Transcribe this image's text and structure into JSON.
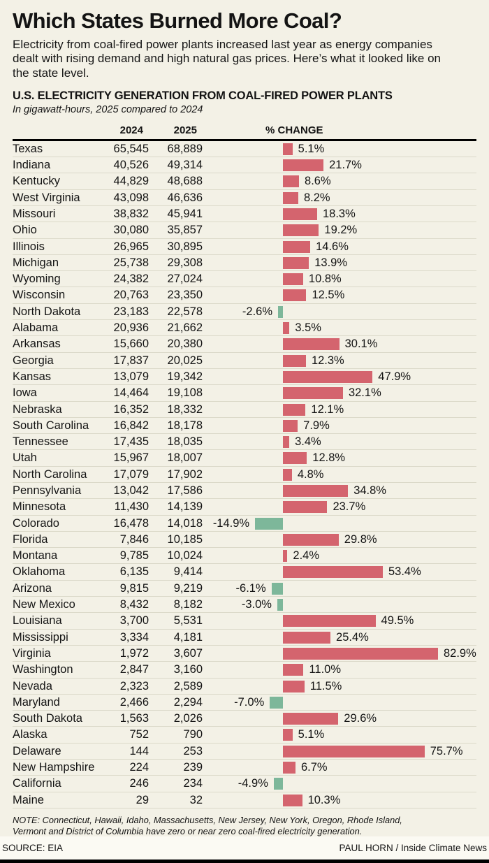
{
  "header": {
    "title": "Which States Burned More Coal?",
    "intro": "Electricity from coal-fired power plants increased last year as energy companies dealt with rising demand and high natural gas prices. Here’s what it looked like on the state level."
  },
  "chart": {
    "heading": "U.S. ELECTRICITY GENERATION FROM COAL-FIRED POWER PLANTS",
    "subheading": "In gigawatt-hours, 2025 compared to 2024",
    "columns": {
      "year_2024": "2024",
      "year_2025": "2025",
      "change": "% CHANGE"
    }
  },
  "chart_data": {
    "type": "bar",
    "orientation": "horizontal",
    "title": "U.S. ELECTRICITY GENERATION FROM COAL-FIRED POWER PLANTS",
    "subtitle": "In gigawatt-hours, 2025 compared to 2024",
    "unit": "gigawatt-hours",
    "bar_variable": "% CHANGE",
    "xlim": [
      -15,
      90
    ],
    "legend": false,
    "grid": "row-separators",
    "categories": [
      "Texas",
      "Indiana",
      "Kentucky",
      "West Virginia",
      "Missouri",
      "Ohio",
      "Illinois",
      "Michigan",
      "Wyoming",
      "Wisconsin",
      "North Dakota",
      "Alabama",
      "Arkansas",
      "Georgia",
      "Kansas",
      "Iowa",
      "Nebraska",
      "South Carolina",
      "Tennessee",
      "Utah",
      "North Carolina",
      "Pennsylvania",
      "Minnesota",
      "Colorado",
      "Florida",
      "Montana",
      "Oklahoma",
      "Arizona",
      "New Mexico",
      "Louisiana",
      "Mississippi",
      "Virginia",
      "Washington",
      "Nevada",
      "Maryland",
      "South Dakota",
      "Alaska",
      "Delaware",
      "New Hampshire",
      "California",
      "Maine"
    ],
    "series": [
      {
        "name": "2024",
        "values": [
          65545,
          40526,
          44829,
          43098,
          38832,
          30080,
          26965,
          25738,
          24382,
          20763,
          23183,
          20936,
          15660,
          17837,
          13079,
          14464,
          16352,
          16842,
          17435,
          15967,
          17079,
          13042,
          11430,
          16478,
          7846,
          9785,
          6135,
          9815,
          8432,
          3700,
          3334,
          1972,
          2847,
          2323,
          2466,
          1563,
          752,
          144,
          224,
          246,
          29
        ]
      },
      {
        "name": "2025",
        "values": [
          68889,
          49314,
          48688,
          46636,
          45941,
          35857,
          30895,
          29308,
          27024,
          23350,
          22578,
          21662,
          20380,
          20025,
          19342,
          19108,
          18332,
          18178,
          18035,
          18007,
          17902,
          17586,
          14139,
          14018,
          10185,
          10024,
          9414,
          9219,
          8182,
          5531,
          4181,
          3607,
          3160,
          2589,
          2294,
          2026,
          790,
          253,
          239,
          234,
          32
        ]
      },
      {
        "name": "% CHANGE",
        "values": [
          5.1,
          21.7,
          8.6,
          8.2,
          18.3,
          19.2,
          14.6,
          13.9,
          10.8,
          12.5,
          -2.6,
          3.5,
          30.1,
          12.3,
          47.9,
          32.1,
          12.1,
          7.9,
          3.4,
          12.8,
          4.8,
          34.8,
          23.7,
          -14.9,
          29.8,
          2.4,
          53.4,
          -6.1,
          -3.0,
          49.5,
          25.4,
          82.9,
          11.0,
          11.5,
          -7.0,
          29.6,
          5.1,
          75.7,
          6.7,
          -4.9,
          10.3
        ]
      }
    ],
    "positive_color": "#d4646e",
    "negative_color": "#7db79a"
  },
  "colors": {
    "background": "#f3f1e6",
    "positive_bar": "#d4646e",
    "negative_bar": "#7db79a",
    "rule": "#000000",
    "row_separator": "#dbd9c9"
  },
  "footer": {
    "note": "NOTE: Connecticut, Hawaii, Idaho, Massachusetts, New Jersey, New York, Oregon, Rhode Island, Vermont and District of Columbia have zero or near zero coal-fired electricity generation.",
    "source": "SOURCE: EIA",
    "credit": "PAUL HORN / Inside Climate News"
  }
}
